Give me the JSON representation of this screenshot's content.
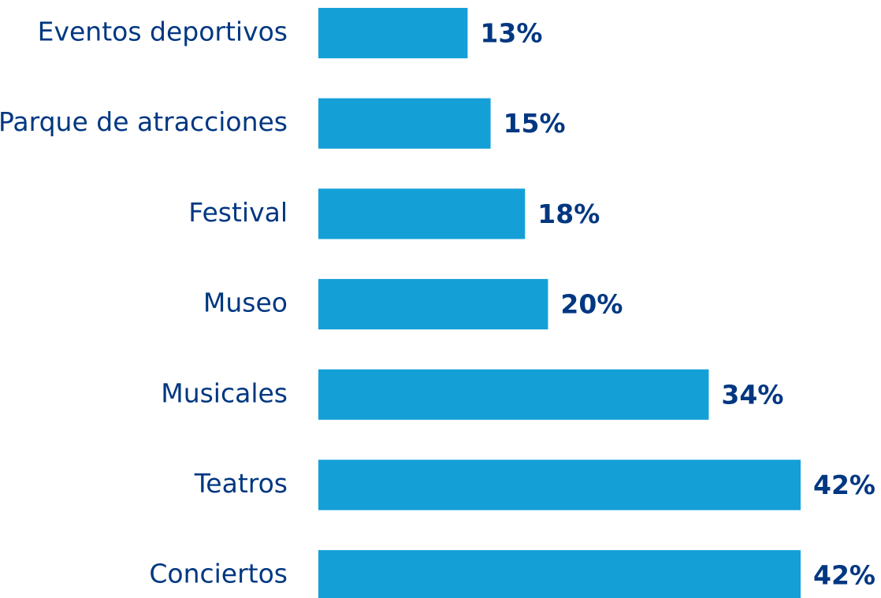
{
  "chart_data": {
    "type": "bar",
    "orientation": "horizontal",
    "categories": [
      "Eventos deportivos",
      "Parque de atracciones",
      "Festival",
      "Museo",
      "Musicales",
      "Teatros",
      "Conciertos"
    ],
    "values": [
      13,
      15,
      18,
      20,
      34,
      42,
      42
    ],
    "value_labels": [
      "13%",
      "15%",
      "18%",
      "20%",
      "34%",
      "42%",
      "42%"
    ],
    "color": "#14a0d7"
  }
}
